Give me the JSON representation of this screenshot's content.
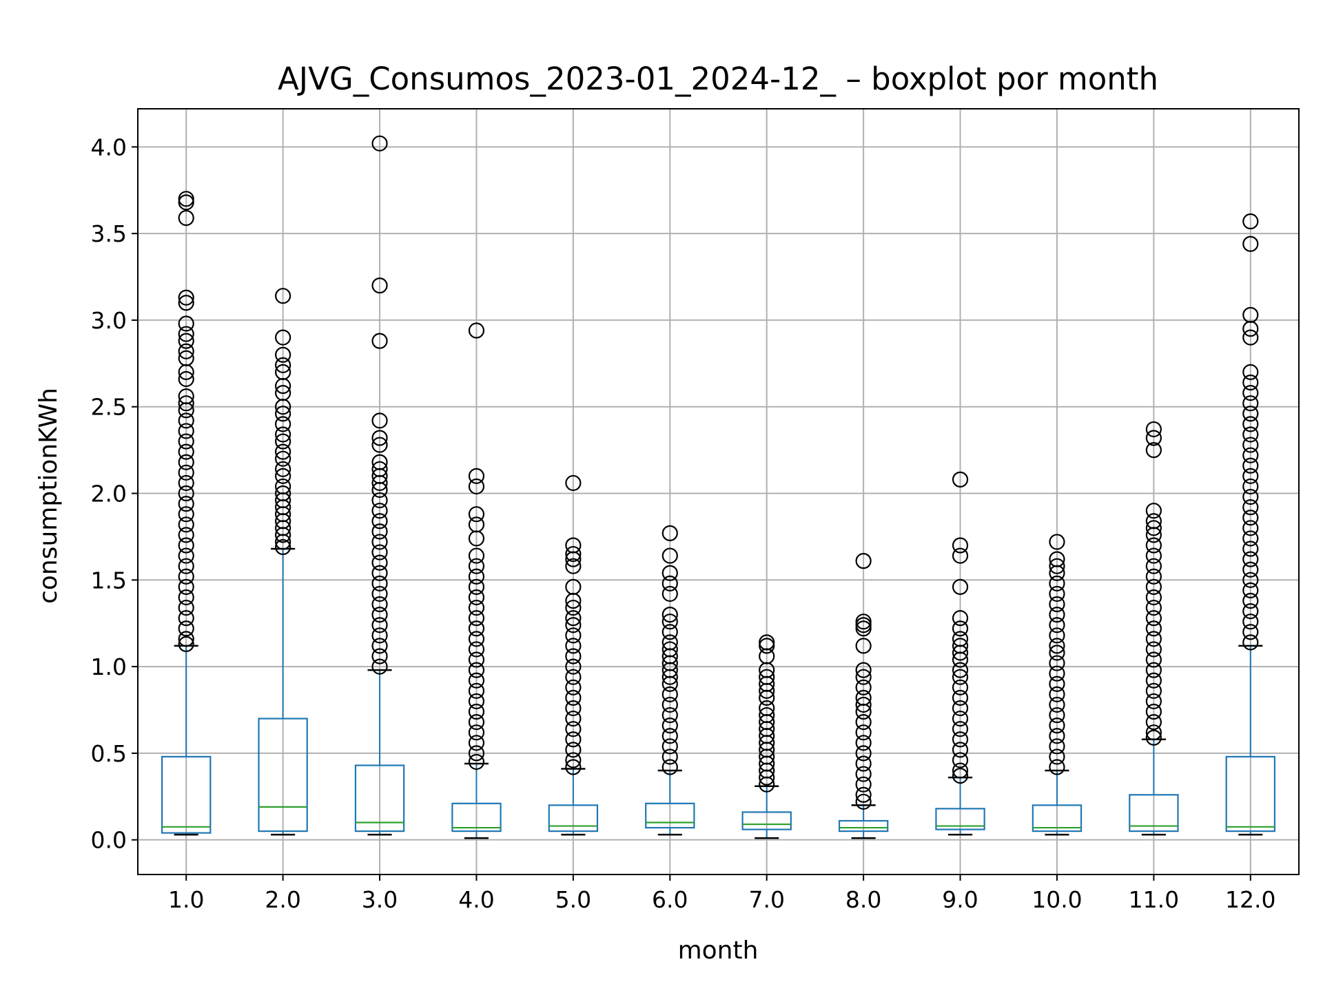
{
  "chart_data": {
    "type": "box",
    "title": "AJVG_Consumos_2023-01_2024-12_ – boxplot por month",
    "xlabel": "month",
    "ylabel": "consumptionKWh",
    "ylim": [
      -0.2,
      4.22
    ],
    "yticks": [
      0.0,
      0.5,
      1.0,
      1.5,
      2.0,
      2.5,
      3.0,
      3.5,
      4.0
    ],
    "ytick_labels": [
      "0.0",
      "0.5",
      "1.0",
      "1.5",
      "2.0",
      "2.5",
      "3.0",
      "3.5",
      "4.0"
    ],
    "grid": true,
    "colors": {
      "box": "#1f77b4",
      "median": "#2ca02c",
      "whisker": "#1f77b4",
      "cap": "#000000",
      "flier": "#000000",
      "grid": "#b0b0b0"
    },
    "categories": [
      "1.0",
      "2.0",
      "3.0",
      "4.0",
      "5.0",
      "6.0",
      "7.0",
      "8.0",
      "9.0",
      "10.0",
      "11.0",
      "12.0"
    ],
    "boxes": [
      {
        "label": "1.0",
        "whislo": 0.03,
        "q1": 0.04,
        "med": 0.075,
        "q3": 0.48,
        "whishi": 1.12,
        "fliers": [
          3.7,
          3.68,
          3.59,
          3.13,
          3.1,
          2.98,
          2.92,
          2.88,
          2.82,
          2.78,
          2.7,
          2.66,
          2.56,
          2.52,
          2.48,
          2.42,
          2.36,
          2.3,
          2.24,
          2.18,
          2.12,
          2.06,
          2.0,
          1.94,
          1.88,
          1.82,
          1.76,
          1.7,
          1.64,
          1.58,
          1.52,
          1.46,
          1.4,
          1.34,
          1.28,
          1.22,
          1.16,
          1.13
        ]
      },
      {
        "label": "2.0",
        "whislo": 0.03,
        "q1": 0.05,
        "med": 0.19,
        "q3": 0.7,
        "whishi": 1.68,
        "fliers": [
          3.14,
          2.9,
          2.8,
          2.74,
          2.7,
          2.62,
          2.58,
          2.5,
          2.46,
          2.4,
          2.34,
          2.3,
          2.24,
          2.2,
          2.14,
          2.1,
          2.04,
          2.0,
          1.96,
          1.92,
          1.88,
          1.84,
          1.8,
          1.76,
          1.72,
          1.69
        ]
      },
      {
        "label": "3.0",
        "whislo": 0.03,
        "q1": 0.05,
        "med": 0.1,
        "q3": 0.43,
        "whishi": 0.98,
        "fliers": [
          4.02,
          3.2,
          2.88,
          2.42,
          2.32,
          2.28,
          2.18,
          2.14,
          2.1,
          2.06,
          2.02,
          1.96,
          1.9,
          1.84,
          1.78,
          1.72,
          1.66,
          1.6,
          1.54,
          1.48,
          1.42,
          1.36,
          1.3,
          1.24,
          1.18,
          1.12,
          1.06,
          1.0
        ]
      },
      {
        "label": "4.0",
        "whislo": 0.01,
        "q1": 0.05,
        "med": 0.07,
        "q3": 0.21,
        "whishi": 0.44,
        "fliers": [
          2.94,
          2.1,
          2.04,
          1.88,
          1.82,
          1.74,
          1.64,
          1.58,
          1.52,
          1.46,
          1.4,
          1.34,
          1.28,
          1.22,
          1.16,
          1.1,
          1.04,
          0.98,
          0.92,
          0.86,
          0.8,
          0.74,
          0.68,
          0.62,
          0.56,
          0.5,
          0.45
        ]
      },
      {
        "label": "5.0",
        "whislo": 0.03,
        "q1": 0.05,
        "med": 0.08,
        "q3": 0.2,
        "whishi": 0.41,
        "fliers": [
          2.06,
          1.7,
          1.65,
          1.62,
          1.58,
          1.46,
          1.38,
          1.34,
          1.28,
          1.24,
          1.18,
          1.12,
          1.06,
          1.0,
          0.94,
          0.88,
          0.82,
          0.76,
          0.7,
          0.64,
          0.58,
          0.52,
          0.46,
          0.42
        ]
      },
      {
        "label": "6.0",
        "whislo": 0.03,
        "q1": 0.07,
        "med": 0.1,
        "q3": 0.21,
        "whishi": 0.4,
        "fliers": [
          1.77,
          1.64,
          1.54,
          1.48,
          1.42,
          1.3,
          1.26,
          1.2,
          1.14,
          1.1,
          1.06,
          1.02,
          0.98,
          0.94,
          0.9,
          0.84,
          0.78,
          0.72,
          0.66,
          0.6,
          0.54,
          0.48,
          0.42
        ]
      },
      {
        "label": "7.0",
        "whislo": 0.01,
        "q1": 0.06,
        "med": 0.09,
        "q3": 0.16,
        "whishi": 0.31,
        "fliers": [
          1.14,
          1.12,
          1.06,
          0.98,
          0.94,
          0.9,
          0.86,
          0.82,
          0.76,
          0.72,
          0.68,
          0.64,
          0.6,
          0.56,
          0.52,
          0.48,
          0.44,
          0.4,
          0.36,
          0.32
        ]
      },
      {
        "label": "8.0",
        "whislo": 0.01,
        "q1": 0.05,
        "med": 0.07,
        "q3": 0.11,
        "whishi": 0.2,
        "fliers": [
          1.61,
          1.26,
          1.24,
          1.22,
          1.12,
          0.98,
          0.94,
          0.88,
          0.82,
          0.78,
          0.74,
          0.68,
          0.62,
          0.56,
          0.5,
          0.44,
          0.38,
          0.32,
          0.26,
          0.22
        ]
      },
      {
        "label": "9.0",
        "whislo": 0.03,
        "q1": 0.06,
        "med": 0.08,
        "q3": 0.18,
        "whishi": 0.36,
        "fliers": [
          2.08,
          1.7,
          1.64,
          1.46,
          1.28,
          1.22,
          1.16,
          1.12,
          1.08,
          1.04,
          0.98,
          0.94,
          0.88,
          0.82,
          0.76,
          0.7,
          0.64,
          0.58,
          0.52,
          0.46,
          0.4,
          0.37
        ]
      },
      {
        "label": "10.0",
        "whislo": 0.03,
        "q1": 0.05,
        "med": 0.07,
        "q3": 0.2,
        "whishi": 0.4,
        "fliers": [
          1.72,
          1.62,
          1.58,
          1.54,
          1.48,
          1.42,
          1.36,
          1.3,
          1.24,
          1.18,
          1.12,
          1.08,
          1.02,
          0.96,
          0.9,
          0.84,
          0.78,
          0.72,
          0.66,
          0.6,
          0.54,
          0.48,
          0.42
        ]
      },
      {
        "label": "11.0",
        "whislo": 0.03,
        "q1": 0.05,
        "med": 0.08,
        "q3": 0.26,
        "whishi": 0.58,
        "fliers": [
          2.37,
          2.32,
          2.25,
          1.9,
          1.84,
          1.8,
          1.76,
          1.7,
          1.64,
          1.58,
          1.52,
          1.46,
          1.4,
          1.34,
          1.28,
          1.22,
          1.16,
          1.1,
          1.04,
          0.98,
          0.92,
          0.86,
          0.8,
          0.74,
          0.68,
          0.62,
          0.59
        ]
      },
      {
        "label": "12.0",
        "whislo": 0.03,
        "q1": 0.05,
        "med": 0.075,
        "q3": 0.48,
        "whishi": 1.12,
        "fliers": [
          3.57,
          3.44,
          3.03,
          2.95,
          2.9,
          2.7,
          2.64,
          2.58,
          2.52,
          2.46,
          2.4,
          2.34,
          2.28,
          2.22,
          2.16,
          2.1,
          2.04,
          1.98,
          1.92,
          1.86,
          1.8,
          1.74,
          1.68,
          1.62,
          1.56,
          1.5,
          1.44,
          1.38,
          1.32,
          1.26,
          1.2,
          1.14
        ]
      }
    ]
  }
}
